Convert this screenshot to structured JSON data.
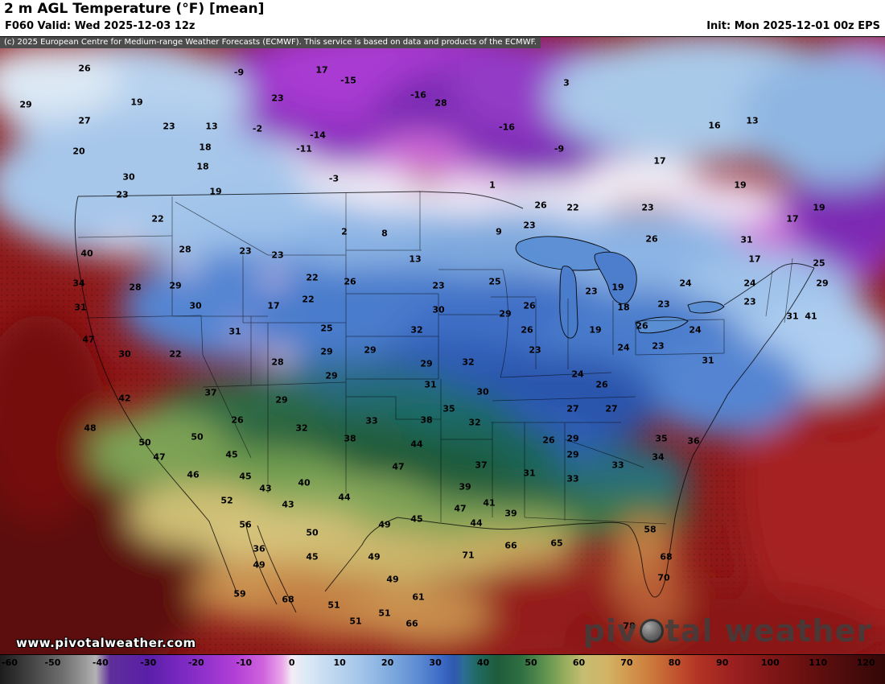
{
  "header": {
    "title": "2 m AGL Temperature (°F) [mean]",
    "valid": "F060 Valid: Wed 2025-12-03 12z",
    "init": "Init: Mon 2025-12-01 00z EPS",
    "copyright": "(c) 2025 European Centre for Medium-range Weather Forecasts (ECMWF). This service is based on data and products of the ECMWF."
  },
  "watermark": {
    "url": "www.pivotalweather.com",
    "brand_part1": "piv",
    "brand_part2": "tal weather",
    "brand_full": "pivotal weather"
  },
  "colorbar": {
    "unit": "°F",
    "min": -61,
    "max": 124,
    "ticks": [
      -60,
      -50,
      -40,
      -30,
      -20,
      -10,
      0,
      10,
      20,
      30,
      40,
      50,
      60,
      70,
      80,
      90,
      100,
      110,
      120
    ],
    "stops": [
      [
        -61,
        "#1c1c1c"
      ],
      [
        -54,
        "#474747"
      ],
      [
        -48,
        "#6e6e6e"
      ],
      [
        -43,
        "#9c9c9c"
      ],
      [
        -41,
        "#b3b3b3"
      ],
      [
        -38,
        "#5e2f9a"
      ],
      [
        -30,
        "#5a1fa8"
      ],
      [
        -24,
        "#7527be"
      ],
      [
        -18,
        "#9232cc"
      ],
      [
        -12,
        "#b13fd6"
      ],
      [
        -6,
        "#cf63dd"
      ],
      [
        -2,
        "#e9a8e9"
      ],
      [
        0,
        "#f4ecf4"
      ],
      [
        3,
        "#dceaf6"
      ],
      [
        8,
        "#c2d9f0"
      ],
      [
        14,
        "#a5c6ea"
      ],
      [
        20,
        "#83ade0"
      ],
      [
        26,
        "#608ed4"
      ],
      [
        31,
        "#3e6cc6"
      ],
      [
        34,
        "#2f58b0"
      ],
      [
        36,
        "#2b6e93"
      ],
      [
        39,
        "#20695f"
      ],
      [
        43,
        "#1e5c3a"
      ],
      [
        48,
        "#2f6f42"
      ],
      [
        53,
        "#5f9350"
      ],
      [
        57,
        "#94ad5c"
      ],
      [
        61,
        "#c6bd72"
      ],
      [
        66,
        "#d2b365"
      ],
      [
        70,
        "#d29a50"
      ],
      [
        75,
        "#cc7b3c"
      ],
      [
        80,
        "#c25530"
      ],
      [
        85,
        "#b23324"
      ],
      [
        92,
        "#9c2020"
      ],
      [
        100,
        "#811616"
      ],
      [
        108,
        "#671010"
      ],
      [
        116,
        "#4c0b0b"
      ],
      [
        124,
        "#330707"
      ]
    ]
  },
  "chart_data": {
    "type": "heatmap",
    "title": "2 m AGL Temperature (°F) [mean]",
    "model": "EPS",
    "forecast_hour": "F060",
    "valid_time": "Wed 2025-12-03 12z",
    "init_time": "Mon 2025-12-01 00z",
    "unit": "°F",
    "scale_range": [
      -60,
      120
    ],
    "stations": [
      [
        105,
        85,
        "26"
      ],
      [
        297,
        90,
        "-9"
      ],
      [
        400,
        87,
        "17"
      ],
      [
        433,
        100,
        "-15"
      ],
      [
        704,
        103,
        "3"
      ],
      [
        32,
        130,
        "29"
      ],
      [
        170,
        127,
        "19"
      ],
      [
        345,
        122,
        "23"
      ],
      [
        520,
        118,
        "-16"
      ],
      [
        548,
        128,
        "28"
      ],
      [
        105,
        150,
        "27"
      ],
      [
        210,
        157,
        "23"
      ],
      [
        263,
        157,
        "13"
      ],
      [
        320,
        160,
        "-2"
      ],
      [
        395,
        168,
        "-14"
      ],
      [
        630,
        158,
        "-16"
      ],
      [
        888,
        156,
        "16"
      ],
      [
        935,
        150,
        "13"
      ],
      [
        98,
        188,
        "20"
      ],
      [
        255,
        183,
        "18"
      ],
      [
        378,
        185,
        "-11"
      ],
      [
        695,
        185,
        "-9"
      ],
      [
        820,
        200,
        "17"
      ],
      [
        252,
        207,
        "18"
      ],
      [
        160,
        220,
        "30"
      ],
      [
        415,
        222,
        "-3"
      ],
      [
        612,
        230,
        "1"
      ],
      [
        920,
        230,
        "19"
      ],
      [
        152,
        242,
        "23"
      ],
      [
        268,
        238,
        "19"
      ],
      [
        672,
        255,
        "26"
      ],
      [
        712,
        258,
        "22"
      ],
      [
        805,
        258,
        "23"
      ],
      [
        1018,
        258,
        "19"
      ],
      [
        196,
        272,
        "22"
      ],
      [
        428,
        288,
        "2"
      ],
      [
        478,
        290,
        "8"
      ],
      [
        620,
        288,
        "9"
      ],
      [
        658,
        280,
        "23"
      ],
      [
        810,
        297,
        "26"
      ],
      [
        928,
        298,
        "31"
      ],
      [
        985,
        272,
        "17"
      ],
      [
        108,
        315,
        "40"
      ],
      [
        230,
        310,
        "28"
      ],
      [
        305,
        312,
        "23"
      ],
      [
        345,
        317,
        "23"
      ],
      [
        516,
        322,
        "13"
      ],
      [
        938,
        322,
        "17"
      ],
      [
        1018,
        327,
        "25"
      ],
      [
        98,
        352,
        "34"
      ],
      [
        168,
        357,
        "28"
      ],
      [
        218,
        355,
        "29"
      ],
      [
        388,
        345,
        "22"
      ],
      [
        435,
        350,
        "26"
      ],
      [
        545,
        355,
        "23"
      ],
      [
        615,
        350,
        "25"
      ],
      [
        735,
        362,
        "23"
      ],
      [
        768,
        357,
        "19"
      ],
      [
        852,
        352,
        "24"
      ],
      [
        932,
        352,
        "24"
      ],
      [
        1022,
        352,
        "29"
      ],
      [
        100,
        382,
        "31"
      ],
      [
        243,
        380,
        "30"
      ],
      [
        340,
        380,
        "17"
      ],
      [
        383,
        372,
        "22"
      ],
      [
        658,
        380,
        "26"
      ],
      [
        775,
        382,
        "18"
      ],
      [
        825,
        378,
        "23"
      ],
      [
        932,
        375,
        "23"
      ],
      [
        985,
        393,
        "31"
      ],
      [
        1008,
        393,
        "41"
      ],
      [
        110,
        422,
        "47"
      ],
      [
        292,
        412,
        "31"
      ],
      [
        406,
        408,
        "25"
      ],
      [
        518,
        410,
        "32"
      ],
      [
        545,
        385,
        "30"
      ],
      [
        628,
        390,
        "29"
      ],
      [
        655,
        410,
        "26"
      ],
      [
        740,
        410,
        "19"
      ],
      [
        798,
        405,
        "26"
      ],
      [
        864,
        410,
        "24"
      ],
      [
        155,
        440,
        "30"
      ],
      [
        218,
        440,
        "22"
      ],
      [
        345,
        450,
        "28"
      ],
      [
        406,
        437,
        "29"
      ],
      [
        460,
        435,
        "29"
      ],
      [
        530,
        452,
        "29"
      ],
      [
        582,
        450,
        "32"
      ],
      [
        665,
        435,
        "23"
      ],
      [
        775,
        432,
        "24"
      ],
      [
        818,
        430,
        "23"
      ],
      [
        880,
        448,
        "31"
      ],
      [
        412,
        467,
        "29"
      ],
      [
        535,
        478,
        "31"
      ],
      [
        600,
        487,
        "30"
      ],
      [
        718,
        465,
        "24"
      ],
      [
        748,
        478,
        "26"
      ],
      [
        155,
        495,
        "42"
      ],
      [
        262,
        488,
        "37"
      ],
      [
        350,
        497,
        "29"
      ],
      [
        558,
        508,
        "35"
      ],
      [
        712,
        508,
        "27"
      ],
      [
        760,
        508,
        "27"
      ],
      [
        295,
        522,
        "26"
      ],
      [
        375,
        532,
        "32"
      ],
      [
        462,
        523,
        "33"
      ],
      [
        530,
        522,
        "38"
      ],
      [
        590,
        525,
        "32"
      ],
      [
        112,
        532,
        "48"
      ],
      [
        180,
        550,
        "50"
      ],
      [
        245,
        543,
        "50"
      ],
      [
        435,
        545,
        "38"
      ],
      [
        682,
        547,
        "26"
      ],
      [
        712,
        545,
        "29"
      ],
      [
        822,
        545,
        "35"
      ],
      [
        862,
        548,
        "36"
      ],
      [
        288,
        565,
        "45"
      ],
      [
        518,
        552,
        "44"
      ],
      [
        598,
        578,
        "37"
      ],
      [
        712,
        565,
        "29"
      ],
      [
        768,
        578,
        "33"
      ],
      [
        818,
        568,
        "34"
      ],
      [
        198,
        568,
        "47"
      ],
      [
        240,
        590,
        "46"
      ],
      [
        305,
        592,
        "45"
      ],
      [
        495,
        580,
        "47"
      ],
      [
        578,
        605,
        "39"
      ],
      [
        658,
        588,
        "31"
      ],
      [
        712,
        595,
        "33"
      ],
      [
        330,
        607,
        "43"
      ],
      [
        378,
        600,
        "40"
      ],
      [
        428,
        618,
        "44"
      ],
      [
        608,
        625,
        "41"
      ],
      [
        282,
        622,
        "52"
      ],
      [
        358,
        627,
        "43"
      ],
      [
        572,
        632,
        "47"
      ],
      [
        635,
        638,
        "39"
      ],
      [
        518,
        645,
        "45"
      ],
      [
        592,
        650,
        "44"
      ],
      [
        305,
        652,
        "56"
      ],
      [
        388,
        662,
        "50"
      ],
      [
        478,
        652,
        "49"
      ],
      [
        808,
        658,
        "58"
      ],
      [
        322,
        682,
        "36"
      ],
      [
        582,
        690,
        "71"
      ],
      [
        635,
        678,
        "66"
      ],
      [
        692,
        675,
        "65"
      ],
      [
        388,
        692,
        "45"
      ],
      [
        465,
        692,
        "49"
      ],
      [
        828,
        692,
        "68"
      ],
      [
        322,
        702,
        "49"
      ],
      [
        488,
        720,
        "49"
      ],
      [
        825,
        718,
        "70"
      ],
      [
        298,
        738,
        "59"
      ],
      [
        358,
        745,
        "68"
      ],
      [
        415,
        752,
        "51"
      ],
      [
        478,
        762,
        "51"
      ],
      [
        442,
        772,
        "51"
      ],
      [
        512,
        775,
        "66"
      ],
      [
        520,
        742,
        "61"
      ],
      [
        782,
        778,
        "78"
      ]
    ]
  }
}
